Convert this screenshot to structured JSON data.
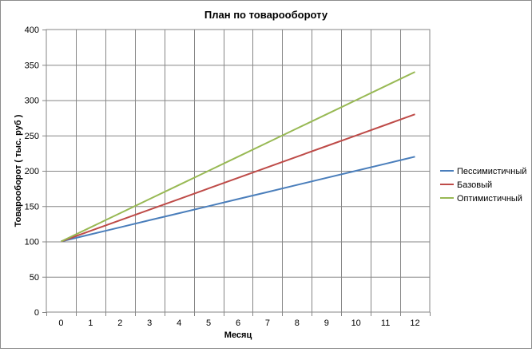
{
  "chart_data": {
    "type": "line",
    "title": "План по товарообороту",
    "xlabel": "Месяц",
    "ylabel": "Товарооборот  ( тыс. руб )",
    "x": [
      0,
      1,
      2,
      3,
      4,
      5,
      6,
      7,
      8,
      9,
      10,
      11,
      12
    ],
    "xlim": [
      0,
      12
    ],
    "ylim": [
      0,
      400
    ],
    "yticks": [
      0,
      50,
      100,
      150,
      200,
      250,
      300,
      350,
      400
    ],
    "grid": true,
    "legend_position": "right",
    "series": [
      {
        "name": "Пессимистичный",
        "color": "#4a7ebb",
        "values": [
          100,
          110,
          120,
          130,
          140,
          150,
          160,
          170,
          180,
          190,
          200,
          210,
          220
        ]
      },
      {
        "name": "Базовый",
        "color": "#be4b48",
        "values": [
          100,
          115,
          130,
          145,
          160,
          175,
          190,
          205,
          220,
          235,
          250,
          265,
          280
        ]
      },
      {
        "name": "Оптимистичный",
        "color": "#98b954",
        "values": [
          100,
          120,
          140,
          160,
          180,
          200,
          220,
          240,
          260,
          280,
          300,
          320,
          340
        ]
      }
    ]
  }
}
